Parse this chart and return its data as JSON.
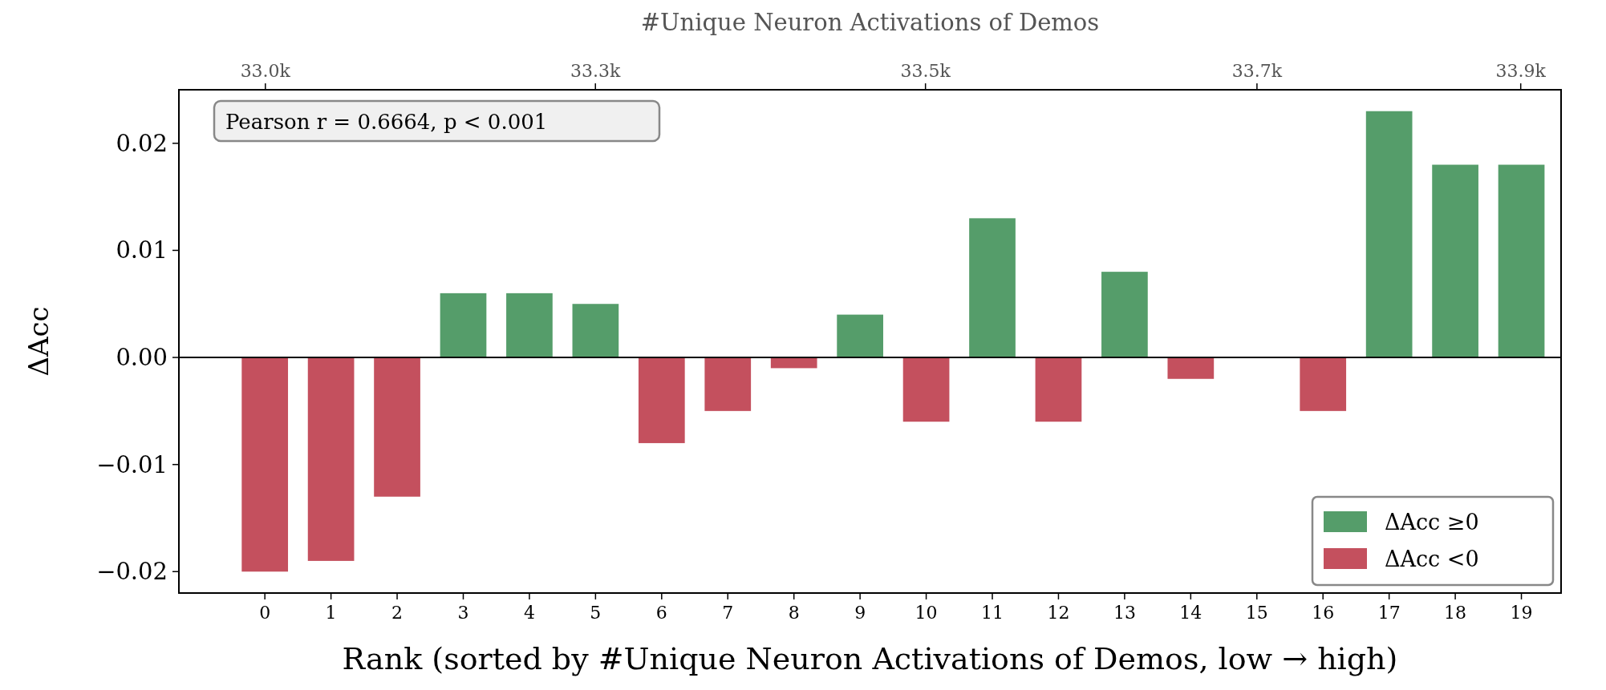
{
  "chart_data": {
    "type": "bar",
    "xlabel": "Rank (sorted by #Unique Neuron Activations of Demos, low → high)",
    "ylabel": "ΔAcc",
    "x2label": "#Unique Neuron Activations of Demos",
    "x": [
      0,
      1,
      2,
      3,
      4,
      5,
      6,
      7,
      8,
      9,
      10,
      11,
      12,
      13,
      14,
      15,
      16,
      17,
      18,
      19
    ],
    "series": [
      {
        "name": "ΔAcc  ≥0",
        "color": "#559d6a",
        "values": [
          null,
          null,
          null,
          0.006,
          0.006,
          0.005,
          null,
          null,
          null,
          0.004,
          null,
          0.013,
          null,
          0.008,
          null,
          0,
          null,
          0.023,
          0.018,
          0.018
        ]
      },
      {
        "name": "ΔAcc  <0",
        "color": "#c4505e",
        "values": [
          -0.02,
          -0.019,
          -0.013,
          null,
          null,
          null,
          -0.008,
          -0.005,
          -0.001,
          null,
          -0.006,
          null,
          -0.006,
          null,
          -0.002,
          null,
          -0.005,
          null,
          null,
          null
        ]
      }
    ],
    "xlim": [
      -1.3,
      19.6
    ],
    "xticks": [
      0,
      1,
      2,
      3,
      4,
      5,
      6,
      7,
      8,
      9,
      10,
      11,
      12,
      13,
      14,
      15,
      16,
      17,
      18,
      19
    ],
    "x2lim": [
      32971,
      33930
    ],
    "x2ticks": [
      {
        "value": 33031,
        "label": "33.0k"
      },
      {
        "value": 33260,
        "label": "33.3k"
      },
      {
        "value": 33489,
        "label": "33.5k"
      },
      {
        "value": 33719,
        "label": "33.7k"
      },
      {
        "value": 33902,
        "label": "33.9k"
      }
    ],
    "ylim": [
      -0.022,
      0.025
    ],
    "yticks": [
      {
        "value": -0.02,
        "label": "−0.02"
      },
      {
        "value": -0.01,
        "label": "−0.01"
      },
      {
        "value": 0,
        "label": "0.00"
      },
      {
        "value": 0.01,
        "label": "0.01"
      },
      {
        "value": 0.02,
        "label": "0.02"
      }
    ],
    "ref_lines": [
      {
        "axis": "y",
        "value": 0,
        "color": "#000000"
      }
    ],
    "annotations": [
      "Pearson r = 0.6664, p < 0.001"
    ],
    "legend": "bottom right",
    "grid": false
  }
}
